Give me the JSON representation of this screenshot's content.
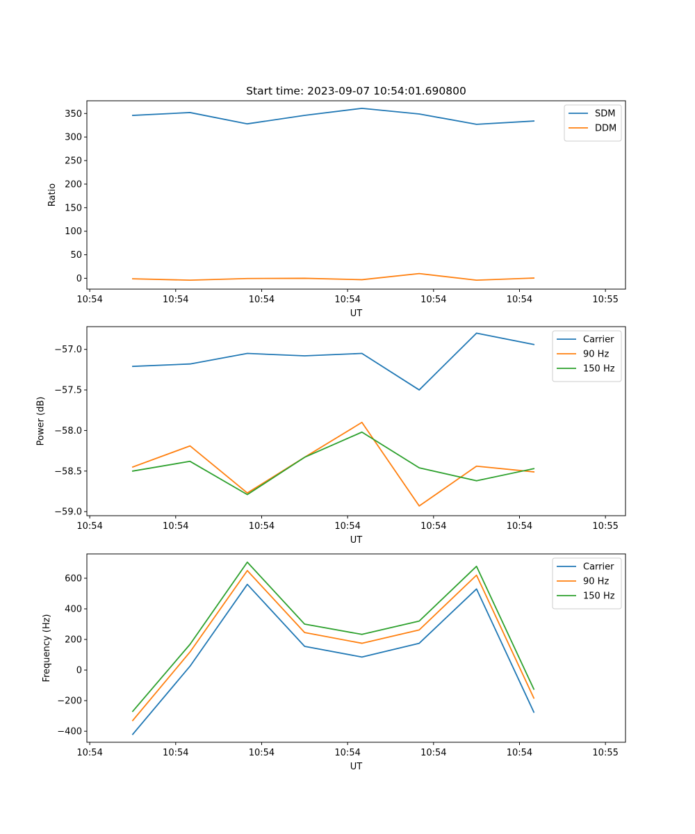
{
  "figure_title": "Start time: 2023-09-07 10:54:01.690800",
  "colors": {
    "blue": "#1f77b4",
    "orange": "#ff7f0e",
    "green": "#2ca02c"
  },
  "chart_data": [
    {
      "type": "line",
      "title": "Start time: 2023-09-07 10:54:01.690800",
      "xlabel": "UT",
      "ylabel": "Ratio",
      "xlim": [
        -0.8,
        8.6
      ],
      "ylim": [
        -23,
        377
      ],
      "x": [
        0,
        1,
        2,
        3,
        4,
        5,
        6,
        7
      ],
      "xticks": [
        -0.75,
        0.75,
        2.25,
        3.75,
        5.25,
        6.75,
        8.25
      ],
      "xtick_labels": [
        "10:54",
        "10:54",
        "10:54",
        "10:54",
        "10:54",
        "10:54",
        "10:55"
      ],
      "yticks": [
        0,
        50,
        100,
        150,
        200,
        250,
        300,
        350
      ],
      "ytick_labels": [
        "0",
        "50",
        "100",
        "150",
        "200",
        "250",
        "300",
        "350"
      ],
      "legend_position": "top-right",
      "series": [
        {
          "name": "SDM",
          "color": "#1f77b4",
          "values": [
            346,
            352,
            328,
            346,
            361,
            349,
            327,
            334
          ]
        },
        {
          "name": "DDM",
          "color": "#ff7f0e",
          "values": [
            -1,
            -4,
            -0.5,
            0,
            -3,
            10,
            -4,
            0.5
          ]
        }
      ]
    },
    {
      "type": "line",
      "xlabel": "UT",
      "ylabel": "Power (dB)",
      "xlim": [
        -0.8,
        8.6
      ],
      "ylim": [
        -59.05,
        -56.72
      ],
      "x": [
        0,
        1,
        2,
        3,
        4,
        5,
        6,
        7
      ],
      "xticks": [
        -0.75,
        0.75,
        2.25,
        3.75,
        5.25,
        6.75,
        8.25
      ],
      "xtick_labels": [
        "10:54",
        "10:54",
        "10:54",
        "10:54",
        "10:54",
        "10:54",
        "10:55"
      ],
      "yticks": [
        -59.0,
        -58.5,
        -58.0,
        -57.5,
        -57.0
      ],
      "ytick_labels": [
        "−59.0",
        "−58.5",
        "−58.0",
        "−57.5",
        "−57.0"
      ],
      "legend_position": "top-right",
      "series": [
        {
          "name": "Carrier",
          "color": "#1f77b4",
          "values": [
            -57.21,
            -57.18,
            -57.05,
            -57.08,
            -57.05,
            -57.5,
            -56.8,
            -56.94
          ]
        },
        {
          "name": "90 Hz",
          "color": "#ff7f0e",
          "values": [
            -58.45,
            -58.19,
            -58.77,
            -58.33,
            -57.9,
            -58.93,
            -58.44,
            -58.51
          ]
        },
        {
          "name": "150 Hz",
          "color": "#2ca02c",
          "values": [
            -58.5,
            -58.38,
            -58.79,
            -58.33,
            -58.02,
            -58.46,
            -58.62,
            -58.47
          ]
        }
      ]
    },
    {
      "type": "line",
      "xlabel": "UT",
      "ylabel": "Frequency (Hz)",
      "xlim": [
        -0.8,
        8.6
      ],
      "ylim": [
        -472,
        759
      ],
      "x": [
        0,
        1,
        2,
        3,
        4,
        5,
        6,
        7
      ],
      "xticks": [
        -0.75,
        0.75,
        2.25,
        3.75,
        5.25,
        6.75,
        8.25
      ],
      "xtick_labels": [
        "10:54",
        "10:54",
        "10:54",
        "10:54",
        "10:54",
        "10:54",
        "10:55"
      ],
      "yticks": [
        -400,
        -200,
        0,
        200,
        400,
        600
      ],
      "ytick_labels": [
        "−400",
        "−200",
        "0",
        "200",
        "400",
        "600"
      ],
      "legend_position": "top-right",
      "series": [
        {
          "name": "Carrier",
          "color": "#1f77b4",
          "values": [
            -420,
            25,
            560,
            155,
            85,
            175,
            530,
            -275
          ]
        },
        {
          "name": "90 Hz",
          "color": "#ff7f0e",
          "values": [
            -330,
            118,
            650,
            245,
            175,
            262,
            620,
            -183
          ]
        },
        {
          "name": "150 Hz",
          "color": "#2ca02c",
          "values": [
            -270,
            168,
            705,
            300,
            233,
            320,
            678,
            -125
          ]
        }
      ]
    }
  ]
}
